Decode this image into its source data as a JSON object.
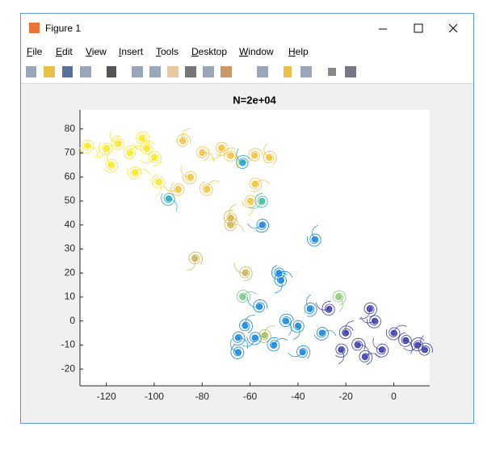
{
  "window": {
    "title": "Figure 1",
    "menu": [
      "File",
      "Edit",
      "View",
      "Insert",
      "Tools",
      "Desktop",
      "Window",
      "Help"
    ]
  },
  "chart_data": {
    "type": "scatter",
    "title": "N=2e+04",
    "x": [
      -128,
      -120,
      -115,
      -110,
      -105,
      -100,
      -118,
      -108,
      -98,
      -103,
      -88,
      -80,
      -72,
      -85,
      -78,
      -68,
      -58,
      -52,
      -58,
      -60,
      -90,
      -68,
      -68,
      -83,
      -62,
      -54,
      -94,
      -55,
      -63,
      -63,
      -23,
      -55,
      -33,
      -48,
      -47,
      -56,
      -62,
      -65,
      -58,
      -65,
      -50,
      -45,
      -38,
      -35,
      -30,
      -40,
      -27,
      -20,
      -15,
      -10,
      -5,
      0,
      5,
      10,
      13,
      -12,
      -22,
      -8
    ],
    "y": [
      73,
      72,
      74,
      70,
      76,
      68,
      65,
      62,
      58,
      72,
      75,
      70,
      72,
      60,
      55,
      69,
      69,
      68,
      57,
      50,
      55,
      43,
      40,
      26,
      20,
      -6,
      51,
      50,
      66,
      10,
      10,
      40,
      34,
      20,
      17,
      6,
      -2,
      -7,
      -7,
      -13,
      -10,
      0,
      -13,
      5,
      -5,
      -2,
      5,
      -5,
      -10,
      5,
      -12,
      -5,
      -8,
      -10,
      -12,
      -15,
      -12,
      0
    ],
    "colors": [
      "#f9e721",
      "#f9e721",
      "#f9e721",
      "#f9e721",
      "#f9e721",
      "#f9e721",
      "#f9e721",
      "#f9e721",
      "#f9e721",
      "#f9e721",
      "#f2c23e",
      "#f2c23e",
      "#f2c23e",
      "#f2c23e",
      "#f2c23e",
      "#f2c23e",
      "#f2c23e",
      "#f2c23e",
      "#f2c23e",
      "#f2c23e",
      "#f2c23e",
      "#d6b54c",
      "#d6b54c",
      "#c9b15a",
      "#c9b15a",
      "#a8b85c",
      "#26a8b5",
      "#3cbca0",
      "#1fa0c0",
      "#72c98a",
      "#8ac977",
      "#1585d8",
      "#1585d8",
      "#1585d8",
      "#1585d8",
      "#1585d8",
      "#1585d8",
      "#1585d8",
      "#1585d8",
      "#1585d8",
      "#1585d8",
      "#1585d8",
      "#1585d8",
      "#1585d8",
      "#1585d8",
      "#1585d8",
      "#3a3ca6",
      "#3a3ca6",
      "#3a3ca6",
      "#3a3ca6",
      "#3a3ca6",
      "#3a3ca6",
      "#3a3ca6",
      "#3a3ca6",
      "#3a3ca6",
      "#3a3ca6",
      "#3a3ca6",
      "#3a3ca6"
    ],
    "xlim": [
      -131,
      15
    ],
    "ylim": [
      -27,
      88
    ],
    "xticks": [
      -120,
      -100,
      -80,
      -60,
      -40,
      -20,
      0
    ],
    "yticks": [
      -20,
      -10,
      0,
      10,
      20,
      30,
      40,
      50,
      60,
      70,
      80
    ]
  }
}
